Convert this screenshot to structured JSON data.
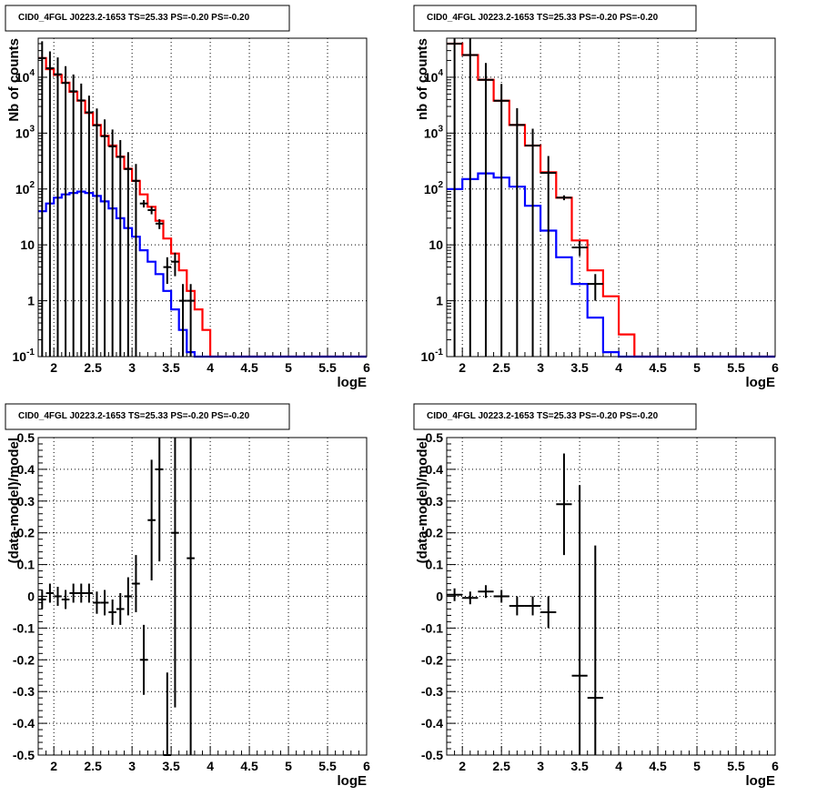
{
  "chart_data": [
    {
      "type": "line",
      "title": "CID0_4FGL J0223.2-1653 TS=25.33 PS=-0.20 PS=-0.20",
      "xlabel": "logE",
      "ylabel": "Nb of counts",
      "yscale": "log",
      "xlim": [
        1.8,
        6.0
      ],
      "ylim": [
        0.1,
        50000
      ],
      "xticks": [
        "2",
        "2.5",
        "3",
        "3.5",
        "4",
        "4.5",
        "5",
        "5.5",
        "6"
      ],
      "yticks": [
        "10^-1",
        "1",
        "10",
        "10^2",
        "10^3",
        "10^4"
      ],
      "grid": true,
      "bin_width": 0.1,
      "series": [
        {
          "kind": "hist",
          "color": "#ff0000",
          "edges": [
            1.8,
            1.9,
            2.0,
            2.1,
            2.2,
            2.3,
            2.4,
            2.5,
            2.6,
            2.7,
            2.8,
            2.9,
            3.0,
            3.1,
            3.2,
            3.3,
            3.4,
            3.5,
            3.6,
            3.7,
            3.8,
            3.9,
            4.0,
            4.1,
            4.2,
            4.3,
            4.4,
            4.5,
            4.6,
            4.7,
            4.8,
            4.9,
            5.0,
            5.1,
            5.2,
            5.3,
            5.4,
            5.5,
            5.6,
            5.7,
            5.8,
            5.9,
            6.0
          ],
          "values": [
            22000,
            14000,
            11000,
            8000,
            5500,
            3800,
            2300,
            1400,
            900,
            600,
            380,
            230,
            140,
            80,
            48,
            27,
            13,
            7,
            3.5,
            1.5,
            0.7,
            0.3,
            0.1,
            0.1,
            0.1,
            0.1,
            0.1,
            0.1,
            0.1,
            0.1,
            0.1,
            0.1,
            0.1,
            0.1,
            0.1,
            0.1,
            0.1,
            0.1,
            0.1,
            0.1,
            0.1,
            0.1
          ]
        },
        {
          "kind": "hist",
          "color": "#0000ff",
          "edges": [
            1.8,
            1.9,
            2.0,
            2.1,
            2.2,
            2.3,
            2.4,
            2.5,
            2.6,
            2.7,
            2.8,
            2.9,
            3.0,
            3.1,
            3.2,
            3.3,
            3.4,
            3.5,
            3.6,
            3.7,
            3.8,
            3.9,
            4.0,
            4.1,
            4.2,
            4.3,
            4.4,
            4.5,
            4.6,
            4.7,
            4.8,
            4.9,
            5.0,
            5.1,
            5.2,
            5.3,
            5.4,
            5.5,
            5.6,
            5.7,
            5.8,
            5.9,
            6.0
          ],
          "values": [
            40,
            55,
            70,
            80,
            85,
            90,
            85,
            75,
            60,
            45,
            30,
            20,
            14,
            8,
            5,
            3,
            1.5,
            0.7,
            0.3,
            0.12,
            0.1,
            0.1,
            0.1,
            0.1,
            0.1,
            0.1,
            0.1,
            0.1,
            0.1,
            0.1,
            0.1,
            0.1,
            0.1,
            0.1,
            0.1,
            0.1,
            0.1,
            0.1,
            0.1,
            0.1,
            0.1,
            0.1
          ]
        },
        {
          "kind": "points",
          "color": "#000000",
          "x": [
            1.85,
            1.95,
            2.05,
            2.15,
            2.25,
            2.35,
            2.45,
            2.55,
            2.65,
            2.75,
            2.85,
            2.95,
            3.05,
            3.15,
            3.25,
            3.35,
            3.45,
            3.55,
            3.65,
            3.75
          ],
          "y": [
            22000,
            14500,
            11300,
            7900,
            5600,
            3850,
            2350,
            1380,
            880,
            580,
            375,
            228,
            140,
            55,
            42,
            24,
            4,
            5,
            1,
            1
          ],
          "err": [
            1,
            1,
            1,
            1,
            1,
            1,
            1,
            1,
            1,
            1,
            1,
            1,
            1,
            0.15,
            0.16,
            0.2,
            0.5,
            0.45,
            0.99,
            0.99
          ]
        }
      ]
    },
    {
      "type": "line",
      "title": "CID0_4FGL J0223.2-1653 TS=25.33 PS=-0.20 PS=-0.20",
      "xlabel": "logE",
      "ylabel": "nb of counts",
      "yscale": "log",
      "xlim": [
        1.8,
        6.0
      ],
      "ylim": [
        0.1,
        50000
      ],
      "xticks": [
        "2",
        "2.5",
        "3",
        "3.5",
        "4",
        "4.5",
        "5",
        "5.5",
        "6"
      ],
      "yticks": [
        "10^-1",
        "1",
        "10",
        "10^2",
        "10^3",
        "10^4"
      ],
      "grid": true,
      "bin_width": 0.2,
      "series": [
        {
          "kind": "hist",
          "color": "#ff0000",
          "edges": [
            1.8,
            2.0,
            2.2,
            2.4,
            2.6,
            2.8,
            3.0,
            3.2,
            3.4,
            3.6,
            3.8,
            4.0,
            4.2,
            4.4,
            4.6,
            4.8,
            5.0,
            5.2,
            5.4,
            5.6,
            5.8,
            6.0
          ],
          "values": [
            40000,
            25000,
            9000,
            3800,
            1400,
            600,
            200,
            70,
            12,
            3.5,
            1.2,
            0.25,
            0.1,
            0.1,
            0.1,
            0.1,
            0.1,
            0.1,
            0.1,
            0.1,
            0.1
          ]
        },
        {
          "kind": "hist",
          "color": "#0000ff",
          "edges": [
            1.8,
            2.0,
            2.2,
            2.4,
            2.6,
            2.8,
            3.0,
            3.2,
            3.4,
            3.6,
            3.8,
            4.0,
            4.2,
            4.4,
            4.6,
            4.8,
            5.0,
            5.2,
            5.4,
            5.6,
            5.8,
            6.0
          ],
          "values": [
            100,
            150,
            190,
            160,
            110,
            50,
            18,
            6,
            2,
            0.5,
            0.12,
            0.1,
            0.1,
            0.1,
            0.1,
            0.1,
            0.1,
            0.1,
            0.1,
            0.1,
            0.1
          ]
        },
        {
          "kind": "points",
          "color": "#000000",
          "x": [
            1.9,
            2.1,
            2.3,
            2.5,
            2.7,
            2.9,
            3.1,
            3.3,
            3.5,
            3.7
          ],
          "y": [
            40000,
            25000,
            9000,
            3800,
            1400,
            600,
            195,
            70,
            9,
            2
          ],
          "err": [
            1,
            1,
            1,
            1,
            1,
            1,
            1,
            0.1,
            0.3,
            0.5
          ]
        }
      ]
    },
    {
      "type": "scatter",
      "title": "CID0_4FGL J0223.2-1653 TS=25.33 PS=-0.20 PS=-0.20",
      "xlabel": "logE",
      "ylabel": "(data-model)/model",
      "yscale": "linear",
      "xlim": [
        1.8,
        6.0
      ],
      "ylim": [
        -0.5,
        0.5
      ],
      "xticks": [
        "2",
        "2.5",
        "3",
        "3.5",
        "4",
        "4.5",
        "5",
        "5.5",
        "6"
      ],
      "yticks": [
        "-0.5",
        "-0.4",
        "-0.3",
        "-0.2",
        "-0.1",
        "0",
        "0.1",
        "0.2",
        "0.3",
        "0.4",
        "0.5"
      ],
      "grid": true,
      "bin_width": 0.1,
      "series": [
        {
          "kind": "points",
          "color": "#000000",
          "x": [
            1.85,
            1.95,
            2.05,
            2.15,
            2.25,
            2.35,
            2.45,
            2.55,
            2.65,
            2.75,
            2.85,
            2.95,
            3.05,
            3.15,
            3.25,
            3.35,
            3.45,
            3.55,
            3.75
          ],
          "y": [
            -0.01,
            0.01,
            0.0,
            -0.01,
            0.01,
            0.01,
            0.01,
            -0.02,
            -0.02,
            -0.05,
            -0.04,
            0.0,
            0.04,
            -0.2,
            0.24,
            0.4,
            -0.5,
            0.2,
            0.12
          ],
          "err": [
            0.03,
            0.03,
            0.03,
            0.03,
            0.03,
            0.03,
            0.03,
            0.035,
            0.04,
            0.04,
            0.05,
            0.06,
            0.09,
            0.11,
            0.19,
            0.29,
            0.26,
            0.55,
            0.9
          ]
        }
      ]
    },
    {
      "type": "scatter",
      "title": "CID0_4FGL J0223.2-1653 TS=25.33 PS=-0.20 PS=-0.20",
      "xlabel": "logE",
      "ylabel": "(data-model)/model",
      "yscale": "linear",
      "xlim": [
        1.8,
        6.0
      ],
      "ylim": [
        -0.5,
        0.5
      ],
      "xticks": [
        "2",
        "2.5",
        "3",
        "3.5",
        "4",
        "4.5",
        "5",
        "5.5",
        "6"
      ],
      "yticks": [
        "-0.5",
        "-0.4",
        "-0.3",
        "-0.2",
        "-0.1",
        "0",
        "0.1",
        "0.2",
        "0.3",
        "0.4",
        "0.5"
      ],
      "grid": true,
      "bin_width": 0.2,
      "series": [
        {
          "kind": "points",
          "color": "#000000",
          "x": [
            1.9,
            2.1,
            2.3,
            2.5,
            2.7,
            2.9,
            3.1,
            3.3,
            3.5,
            3.7
          ],
          "y": [
            0.005,
            -0.005,
            0.015,
            0.0,
            -0.03,
            -0.03,
            -0.05,
            0.29,
            -0.25,
            -0.32
          ],
          "err": [
            0.02,
            0.02,
            0.02,
            0.02,
            0.03,
            0.03,
            0.05,
            0.16,
            0.6,
            0.48
          ]
        }
      ]
    }
  ]
}
